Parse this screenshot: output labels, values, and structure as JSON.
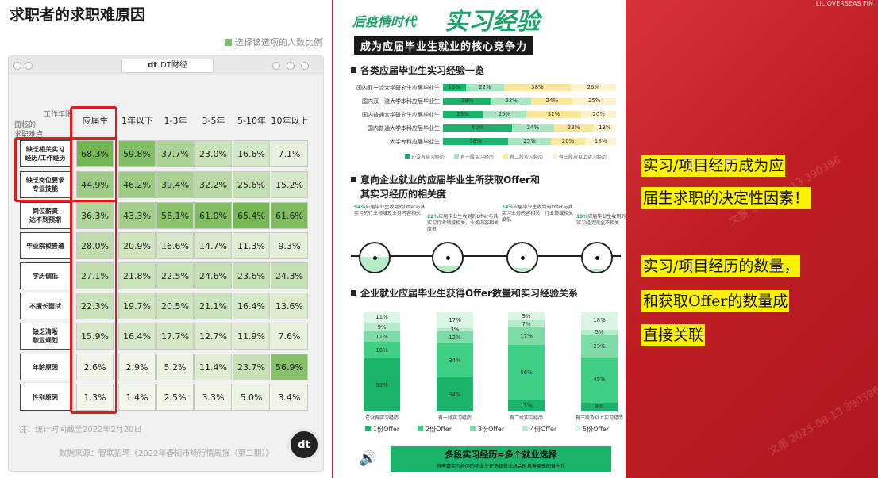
{
  "left": {
    "title": "求职者的求职难原因",
    "brand": "DT财经",
    "brand_mark": "dt",
    "legend": "选择该选项的人数比例",
    "legend_color": "#7cc06a",
    "corner_top": "工作年限",
    "corner_bottom": "面临的\n求职难点",
    "columns": [
      "应届生",
      "1年以下",
      "1-3年",
      "3-5年",
      "5-10年",
      "10年以上"
    ],
    "rows": [
      {
        "label": "缺乏相关实习\n经历/工作经历",
        "values": [
          "68.3%",
          "59.8%",
          "37.7%",
          "23.0%",
          "16.6%",
          "7.1%"
        ]
      },
      {
        "label": "缺乏岗位要求\n专业技能",
        "values": [
          "44.9%",
          "46.2%",
          "39.4%",
          "32.2%",
          "25.6%",
          "15.2%"
        ]
      },
      {
        "label": "岗位薪资\n达不到预期",
        "values": [
          "36.3%",
          "43.3%",
          "56.1%",
          "61.0%",
          "65.4%",
          "61.6%"
        ]
      },
      {
        "label": "毕业院校普通",
        "values": [
          "28.0%",
          "20.9%",
          "16.6%",
          "14.7%",
          "11.3%",
          "9.3%"
        ]
      },
      {
        "label": "学历偏低",
        "values": [
          "27.1%",
          "21.8%",
          "22.5%",
          "24.6%",
          "23.6%",
          "24.3%"
        ]
      },
      {
        "label": "不擅长面试",
        "values": [
          "22.3%",
          "19.7%",
          "20.5%",
          "21.1%",
          "16.4%",
          "13.6%"
        ]
      },
      {
        "label": "缺乏清晰\n职业规划",
        "values": [
          "15.9%",
          "16.4%",
          "17.7%",
          "12.7%",
          "11.9%",
          "7.6%"
        ]
      },
      {
        "label": "年龄原因",
        "values": [
          "2.6%",
          "2.9%",
          "5.2%",
          "11.4%",
          "23.7%",
          "56.9%"
        ]
      },
      {
        "label": "性别原因",
        "values": [
          "1.3%",
          "1.4%",
          "2.5%",
          "3.3%",
          "5.0%",
          "3.4%"
        ]
      }
    ],
    "note": "注：统计时间截至2022年2月20日",
    "source": "数据来源：智联招聘《2022年春招市场行情周报（第二期）》",
    "logo": "dt",
    "highlight_color": "#e11a1f"
  },
  "middle": {
    "title_small": "后疫情时代",
    "title_big": "实习经验",
    "subtitle": "成为应届毕业生就业的核心竞争力",
    "accent": "#1ea36a",
    "section1": "各类应届毕业生实习经验一览",
    "section2_line1": "意向企业就业的应届毕业生所获取Offer和",
    "section2_line2": "其实习经历的相关度",
    "section3": "企业就业应届毕业生获得Offer数量和实习经验关系",
    "hbar": {
      "rows": [
        {
          "label": "国内双一流大学研究生应届毕业生",
          "values": [
            13,
            22,
            38,
            26
          ],
          "labels": [
            "13%",
            "22%",
            "38%",
            "26%"
          ]
        },
        {
          "label": "国内双一流大学本科应届毕业生",
          "values": [
            28,
            23,
            24,
            25
          ],
          "labels": [
            "28%",
            "23%",
            "24%",
            "25%"
          ]
        },
        {
          "label": "国内普通大学研究生应届毕业生",
          "values": [
            23,
            25,
            32,
            20
          ],
          "labels": [
            "23%",
            "25%",
            "32%",
            "20%"
          ]
        },
        {
          "label": "国内普通大学本科应届毕业生",
          "values": [
            40,
            24,
            23,
            13
          ],
          "labels": [
            "40%",
            "24%",
            "23%",
            "13%"
          ]
        },
        {
          "label": "大学专科应届毕业生",
          "values": [
            38,
            25,
            20,
            18
          ],
          "labels": [
            "38%",
            "25%",
            "20%",
            "18%"
          ]
        }
      ],
      "colors": [
        "#19b46a",
        "#a7e6c0",
        "#fbe79a",
        "#fdf4cf"
      ],
      "legend": [
        "还没有实习经历",
        "有一段实习经历",
        "有二段实习经历",
        "有三段及以上实习经历"
      ]
    },
    "gauges": [
      {
        "pct": "54%",
        "text": "应届毕业生收到的Offer与其实习的行业领域及业务内容相关",
        "fill": 0.54
      },
      {
        "pct": "22%",
        "text": "应届毕业生收到的Offer与其实习行业领域相关，业务内容相关度低",
        "fill": 0.22
      },
      {
        "pct": "14%",
        "text": "应届毕业生收到的Offer与其实习业务内容相关，行业领域相关度低",
        "fill": 0.14
      },
      {
        "pct": "10%",
        "text": "应届毕业生收到的Offer与其实习经历完全不相关",
        "fill": 0.1
      }
    ],
    "vbar": {
      "categories": [
        "还没有实习经历",
        "有一段实习经历",
        "有二段实习经历",
        "有三段及以上实习经历"
      ],
      "series_labels": [
        "1份Offer",
        "2份Offer",
        "3份Offer",
        "4份Offer",
        "5份Offer"
      ],
      "colors": [
        "#19b46a",
        "#3fcf85",
        "#7edba7",
        "#b4ebcb",
        "#dcf6e6"
      ],
      "values": [
        [
          53,
          16,
          11,
          9,
          11
        ],
        [
          34,
          34,
          12,
          3,
          17
        ],
        [
          11,
          56,
          17,
          7,
          9
        ],
        [
          9,
          45,
          23,
          5,
          18
        ]
      ],
      "labels": [
        [
          "53%",
          "16%",
          "11%",
          "9%",
          "11%"
        ],
        [
          "34%",
          "34%",
          "12%",
          "3%",
          "17%"
        ],
        [
          "11%",
          "56%",
          "17%",
          "7%",
          "9%"
        ],
        [
          "9%",
          "45%",
          "23%",
          "5%",
          "18%"
        ]
      ]
    },
    "banner_main": "多段实习经历≈多个就业选择",
    "banner_sub": "有丰富实习经历的毕业生在选择就业机会时具备更高的自主性"
  },
  "right": {
    "top_text": "LIL OVERSEAS FIN",
    "lines": [
      "实习/项目经历成为应",
      "届生求职的决定性因素！",
      "实习/项目经历的数量，",
      "和获取Offer的数量成",
      "直接关联"
    ],
    "highlight_color": "#fff200"
  },
  "watermark": "文墨 2025-08-13 390396"
}
